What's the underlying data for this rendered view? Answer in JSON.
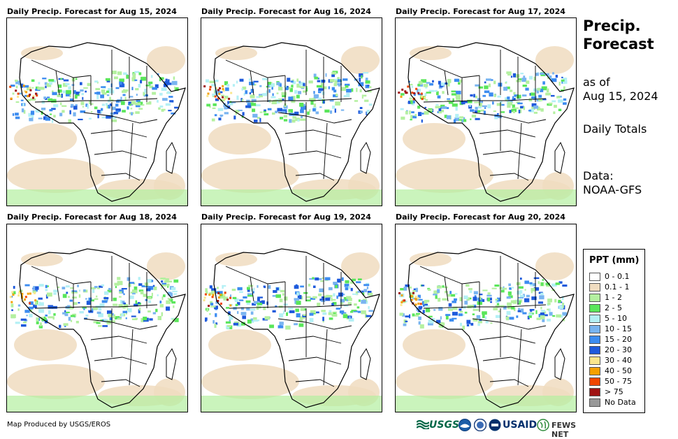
{
  "panels": [
    {
      "title": "Daily Precip. Forecast for Aug 15, 2024"
    },
    {
      "title": "Daily Precip. Forecast for Aug 16, 2024"
    },
    {
      "title": "Daily Precip. Forecast for Aug 17, 2024"
    },
    {
      "title": "Daily Precip. Forecast for Aug 18, 2024"
    },
    {
      "title": "Daily Precip. Forecast for Aug 19, 2024"
    },
    {
      "title": "Daily Precip. Forecast for Aug 20, 2024"
    }
  ],
  "sidebar": {
    "title_line1": "Precip.",
    "title_line2": "Forecast",
    "asof_line1": "as of",
    "asof_line2": "Aug 15, 2024",
    "totals": "Daily Totals",
    "data_line1": "Data:",
    "data_line2": "NOAA-GFS"
  },
  "legend": {
    "title": "PPT (mm)",
    "items": [
      {
        "label": "0 - 0.1",
        "color": "#ffffff"
      },
      {
        "label": "0.1 - 1",
        "color": "#f0dcc0"
      },
      {
        "label": "1 - 2",
        "color": "#b4f0a0"
      },
      {
        "label": "2 - 5",
        "color": "#5ae65a"
      },
      {
        "label": "5 - 10",
        "color": "#b4f0f5"
      },
      {
        "label": "10 - 15",
        "color": "#78b4f0"
      },
      {
        "label": "15 - 20",
        "color": "#3c8cf0"
      },
      {
        "label": "20 - 30",
        "color": "#1e5adc"
      },
      {
        "label": "30 - 40",
        "color": "#fae68c"
      },
      {
        "label": "40 - 50",
        "color": "#f5a000"
      },
      {
        "label": "50 - 75",
        "color": "#f04600"
      },
      {
        "label": "> 75",
        "color": "#a01414"
      },
      {
        "label": "No Data",
        "color": "#999999"
      }
    ]
  },
  "credit": "Map Produced by USGS/EROS",
  "logos": {
    "usgs": "USGS",
    "usaid": "USAID",
    "fews": "FEWS NET"
  }
}
